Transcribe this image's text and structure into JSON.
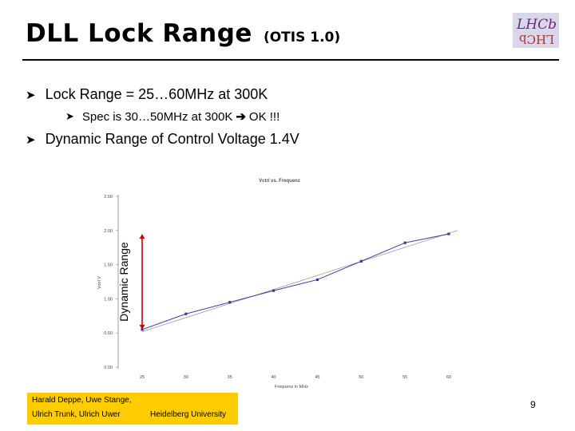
{
  "header": {
    "title": "DLL Lock Range",
    "subtitle": "(OTIS 1.0)",
    "logo_top": "LHCb",
    "logo_bottom": "LHCb"
  },
  "bullets": {
    "b1": "Lock Range = 25…60MHz at 300K",
    "b2_pre": "Spec is 30…50MHz at 300K",
    "b2_post": "OK !!!",
    "b3": "Dynamic Range of Control Voltage 1.4V"
  },
  "chart_data": {
    "type": "line",
    "title": "Vctrl vs. Frequenz",
    "xlabel": "Frequenz in MHz",
    "ylabel": "Vctrl V",
    "x": [
      25,
      30,
      35,
      40,
      45,
      50,
      55,
      60
    ],
    "xticks": [
      "25",
      "30",
      "35",
      "40",
      "45",
      "50",
      "55",
      "60"
    ],
    "yticks": [
      "0.00",
      "0.50",
      "1.00",
      "1.50",
      "2.00",
      "2.50"
    ],
    "ylim": [
      0,
      2.5
    ],
    "series": [
      {
        "name": "",
        "values": [
          0.55,
          0.78,
          0.95,
          1.12,
          1.28,
          1.55,
          1.82,
          1.95
        ],
        "color": "#3a3aa0"
      }
    ],
    "trendline": {
      "from": [
        25,
        0.52
      ],
      "to": [
        61,
        2.0
      ],
      "color": "#999999"
    },
    "annotation": {
      "label": "Dynamic Range",
      "from": 0.55,
      "to": 1.95,
      "color": "#cc0000"
    },
    "grid": false
  },
  "footer": {
    "line1": "Harald Deppe, Uwe Stange,",
    "line2": "Ulrich Trunk, Ulrich Uwer",
    "line3": "Heidelberg University",
    "page": "9",
    "bg_color": "#ffcc00"
  }
}
